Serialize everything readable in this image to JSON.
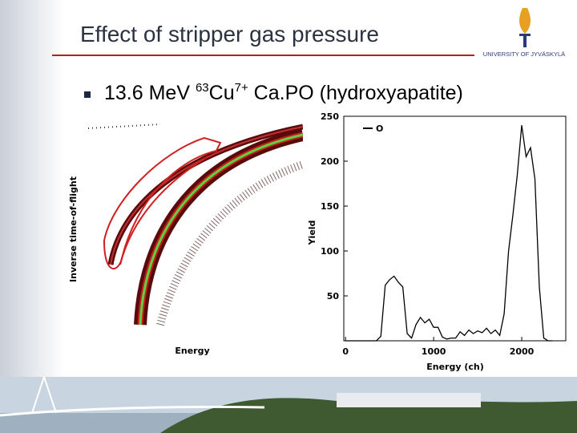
{
  "header": {
    "title": "Effect of stripper gas pressure",
    "logo_text": "UNIVERSITY OF JYVÄSKYLÄ"
  },
  "bullet": {
    "lead": "13.6 MeV ",
    "mass": "63",
    "element": "Cu",
    "charge": "7+",
    "rest": " Ca.PO (hydroxyapatite)"
  },
  "left_panel": {
    "xlabel": "Energy",
    "ylabel": "Inverse time-of-flight"
  },
  "chart_data": {
    "type": "line",
    "xlabel": "Energy (ch)",
    "ylabel": "Yield",
    "x": [
      0,
      50,
      100,
      150,
      200,
      250,
      300,
      350,
      400,
      450,
      500,
      550,
      600,
      650,
      700,
      750,
      800,
      850,
      900,
      950,
      1000,
      1050,
      1100,
      1150,
      1200,
      1250,
      1300,
      1350,
      1400,
      1450,
      1500,
      1550,
      1600,
      1650,
      1700,
      1750,
      1800,
      1850,
      1900,
      1950,
      2000,
      2050,
      2100,
      2150,
      2200,
      2250,
      2300,
      2350
    ],
    "series": [
      {
        "name": "O",
        "color": "#000000",
        "values": [
          0,
          0,
          0,
          0,
          0,
          0,
          0,
          0,
          5,
          62,
          68,
          72,
          65,
          60,
          8,
          3,
          18,
          26,
          20,
          24,
          15,
          15,
          4,
          2,
          3,
          3,
          10,
          6,
          12,
          8,
          11,
          9,
          14,
          8,
          12,
          6,
          30,
          100,
          140,
          185,
          240,
          205,
          215,
          180,
          60,
          3,
          0,
          0
        ]
      }
    ],
    "xlim": [
      -20,
      2500
    ],
    "ylim": [
      0,
      250
    ],
    "xticks": [
      0,
      1000,
      2000
    ],
    "yticks": [
      50,
      100,
      150,
      200,
      250
    ],
    "legend": "upper left"
  }
}
